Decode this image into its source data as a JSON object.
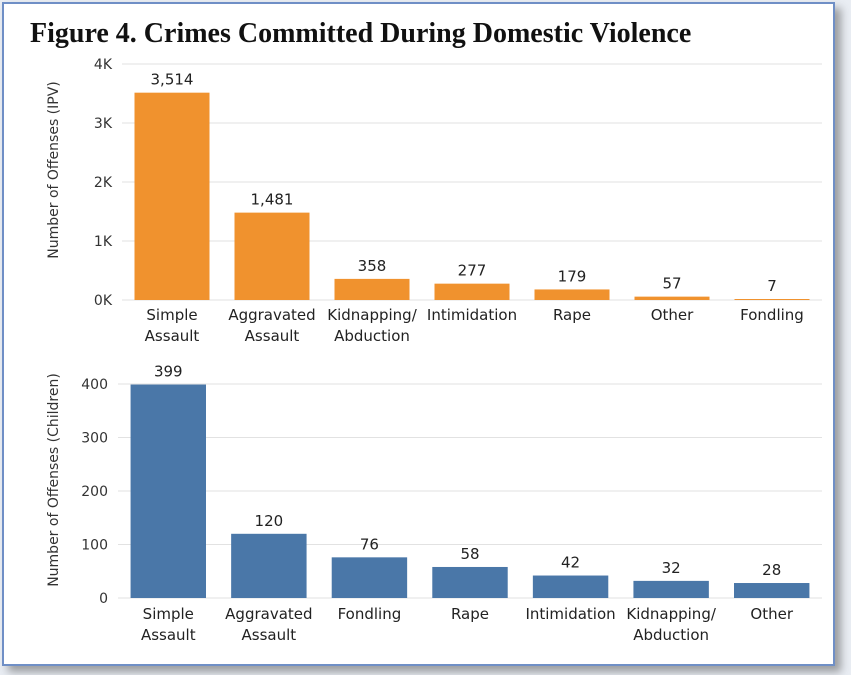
{
  "figure_title": "Figure 4. Crimes Committed During Domestic Violence",
  "colors": {
    "ipv": "#f0922e",
    "children": "#4a77a8",
    "grid": "#e2e2e2",
    "border": "#6f8fc6"
  },
  "chart_data": [
    {
      "type": "bar",
      "ylabel": "Number of Offenses (IPV)",
      "ylim": [
        0,
        4000
      ],
      "yticks": [
        "0K",
        "1K",
        "2K",
        "3K",
        "4K"
      ],
      "ytick_values": [
        0,
        1000,
        2000,
        3000,
        4000
      ],
      "grid": true,
      "categories": [
        [
          "Simple",
          "Assault"
        ],
        [
          "Aggravated",
          "Assault"
        ],
        [
          "Kidnapping/",
          "Abduction"
        ],
        [
          "Intimidation"
        ],
        [
          "Rape"
        ],
        [
          "Other"
        ],
        [
          "Fondling"
        ]
      ],
      "values": [
        3514,
        1481,
        358,
        277,
        179,
        57,
        7
      ],
      "value_labels": [
        "3,514",
        "1,481",
        "358",
        "277",
        "179",
        "57",
        "7"
      ]
    },
    {
      "type": "bar",
      "ylabel": "Number of Offenses (Children)",
      "ylim": [
        0,
        400
      ],
      "yticks": [
        "0",
        "100",
        "200",
        "300",
        "400"
      ],
      "ytick_values": [
        0,
        100,
        200,
        300,
        400
      ],
      "grid": true,
      "categories": [
        [
          "Simple",
          "Assault"
        ],
        [
          "Aggravated",
          "Assault"
        ],
        [
          "Fondling"
        ],
        [
          "Rape"
        ],
        [
          "Intimidation"
        ],
        [
          "Kidnapping/",
          "Abduction"
        ],
        [
          "Other"
        ]
      ],
      "values": [
        399,
        120,
        76,
        58,
        42,
        32,
        28
      ],
      "value_labels": [
        "399",
        "120",
        "76",
        "58",
        "42",
        "32",
        "28"
      ]
    }
  ]
}
